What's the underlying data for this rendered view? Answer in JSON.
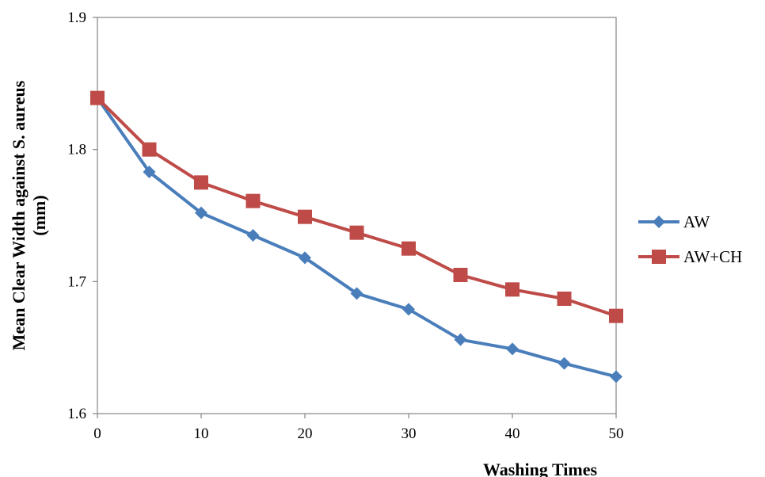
{
  "chart_data": {
    "type": "line",
    "title": "",
    "xlabel": "Washing Times",
    "ylabel_line1": "Mean Clear Width against S. aureus",
    "ylabel_line2": "(mm)",
    "xlim": [
      0,
      50
    ],
    "ylim": [
      1.6,
      1.9
    ],
    "xticks": [
      "0",
      "10",
      "20",
      "30",
      "40",
      "50"
    ],
    "yticks": [
      "1.6",
      "1.7",
      "1.8",
      "1.9"
    ],
    "grid": false,
    "legend_position": "right",
    "x": [
      0,
      5,
      10,
      15,
      20,
      25,
      30,
      35,
      40,
      45,
      50
    ],
    "series": [
      {
        "name": "AW",
        "marker": "diamond",
        "color": "#4a7ebb",
        "values": [
          1.839,
          1.783,
          1.752,
          1.735,
          1.718,
          1.691,
          1.679,
          1.656,
          1.649,
          1.638,
          1.628
        ]
      },
      {
        "name": "AW+CH",
        "marker": "square",
        "color": "#be4b48",
        "values": [
          1.839,
          1.8,
          1.775,
          1.761,
          1.749,
          1.737,
          1.725,
          1.705,
          1.694,
          1.687,
          1.674
        ]
      }
    ]
  }
}
